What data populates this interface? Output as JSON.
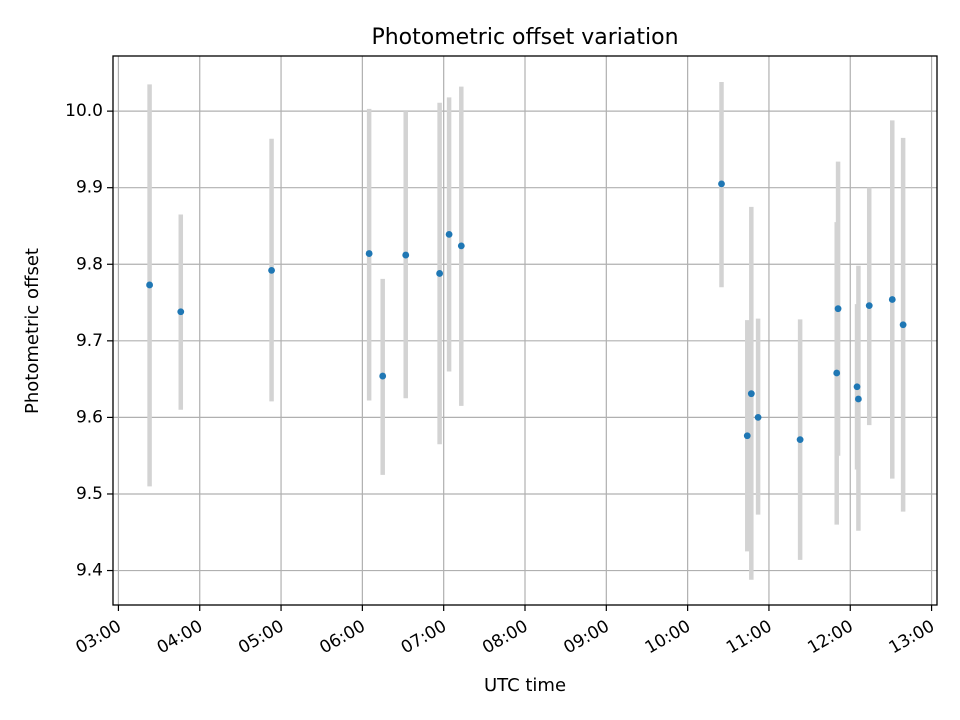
{
  "chart_data": {
    "type": "scatter",
    "title": "Photometric offset variation",
    "xlabel": "UTC time",
    "ylabel": "Photometric offset",
    "x_tick_labels": [
      "03:00",
      "04:00",
      "05:00",
      "06:00",
      "07:00",
      "08:00",
      "09:00",
      "10:00",
      "11:00",
      "12:00",
      "13:00"
    ],
    "y_tick_labels": [
      "9.4",
      "9.5",
      "9.6",
      "9.7",
      "9.8",
      "9.9",
      "10.0"
    ],
    "xlim": [
      "02:56",
      "13:04"
    ],
    "ylim": [
      9.355,
      10.072
    ],
    "grid": true,
    "marker_color": "#1f77b4",
    "errorbar_color": "#d3d3d3",
    "points": [
      {
        "x": "03:23",
        "y": 9.773,
        "ylow": 9.51,
        "yhigh": 10.035
      },
      {
        "x": "03:46",
        "y": 9.738,
        "ylow": 9.61,
        "yhigh": 9.865
      },
      {
        "x": "04:53",
        "y": 9.792,
        "ylow": 9.621,
        "yhigh": 9.964
      },
      {
        "x": "06:05",
        "y": 9.814,
        "ylow": 9.622,
        "yhigh": 10.003
      },
      {
        "x": "06:15",
        "y": 9.654,
        "ylow": 9.525,
        "yhigh": 9.781
      },
      {
        "x": "06:32",
        "y": 9.812,
        "ylow": 9.625,
        "yhigh": 10.0
      },
      {
        "x": "06:57",
        "y": 9.788,
        "ylow": 9.565,
        "yhigh": 10.011
      },
      {
        "x": "07:04",
        "y": 9.839,
        "ylow": 9.66,
        "yhigh": 10.018
      },
      {
        "x": "07:13",
        "y": 9.824,
        "ylow": 9.615,
        "yhigh": 10.032
      },
      {
        "x": "10:25",
        "y": 9.905,
        "ylow": 9.77,
        "yhigh": 10.038
      },
      {
        "x": "10:44",
        "y": 9.576,
        "ylow": 9.425,
        "yhigh": 9.727
      },
      {
        "x": "10:47",
        "y": 9.631,
        "ylow": 9.388,
        "yhigh": 9.875
      },
      {
        "x": "10:52",
        "y": 9.6,
        "ylow": 9.473,
        "yhigh": 9.729
      },
      {
        "x": "11:23",
        "y": 9.571,
        "ylow": 9.414,
        "yhigh": 9.728
      },
      {
        "x": "11:50",
        "y": 9.658,
        "ylow": 9.46,
        "yhigh": 9.855
      },
      {
        "x": "11:51",
        "y": 9.742,
        "ylow": 9.55,
        "yhigh": 9.934
      },
      {
        "x": "12:05",
        "y": 9.64,
        "ylow": 9.532,
        "yhigh": 9.748
      },
      {
        "x": "12:06",
        "y": 9.624,
        "ylow": 9.452,
        "yhigh": 9.798
      },
      {
        "x": "12:14",
        "y": 9.746,
        "ylow": 9.59,
        "yhigh": 9.9
      },
      {
        "x": "12:31",
        "y": 9.754,
        "ylow": 9.52,
        "yhigh": 9.988
      },
      {
        "x": "12:39",
        "y": 9.721,
        "ylow": 9.477,
        "yhigh": 9.965
      }
    ]
  }
}
